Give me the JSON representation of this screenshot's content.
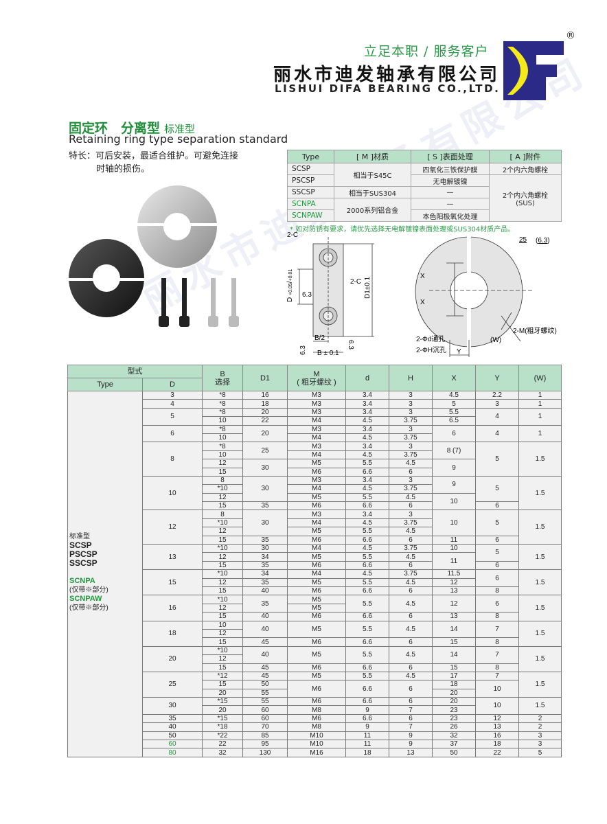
{
  "header": {
    "slogan": "立足本职 / 服务客户",
    "company_cn": "丽水市迪发轴承有限公司",
    "company_en": "LISHUI DIFA BEARING CO.,LTD.",
    "logo_text": "DF",
    "registered": "®",
    "colors": {
      "logo_blue": "#2b2a86",
      "logo_yellow": "#f5ea1c",
      "accent_green": "#2e9a4a",
      "header_green": "#b9e0c8"
    }
  },
  "product": {
    "title": "固定环　分离型",
    "title_sub": "标准型",
    "subtitle": "Retaining ring type separation standard",
    "feature_line1": "特长：可后安装，最适合维护。可避免连接",
    "feature_line2": "时轴的损伤。"
  },
  "material_table": {
    "headers": [
      "Type",
      "[ M ]材质",
      "[ S ]表面处理",
      "[ A ]附件"
    ],
    "rows": [
      [
        "SCSP",
        "相当于S45C",
        "四氧化三铁保护膜",
        "2个内六角螺栓"
      ],
      [
        "PSCSP",
        "",
        "无电解镀镍",
        "2个内六角螺栓"
      ],
      [
        "SSCSP",
        "相当于SUS304",
        "—",
        "(SUS)"
      ],
      [
        "SCNPA",
        "2000系列铝合金",
        "—",
        ""
      ],
      [
        "SCNPAW",
        "",
        "本色阳极氧化处理",
        ""
      ]
    ],
    "note": "* 如对防锈有要求，请优先选择无电解镀镍表面处理或SUS304材质产品。"
  },
  "drawing": {
    "c1": "2-C",
    "c2": "2-C",
    "d_tol": "D",
    "d_tol_up": "+0.05",
    "d_tol_low": "+0.01",
    "d1": "D1±0.1",
    "rough1": "6.3",
    "rough2": "6.3",
    "rough3": "6.3",
    "b_half": "B/2",
    "b": "B ± 0.1",
    "x1": "X",
    "x2": "X",
    "y": "Y",
    "w": "(W)",
    "hole_d": "2-Φd通孔",
    "hole_h": "2-ΦH沉孔",
    "thread": "2-M(粗牙螺纹)",
    "surface": "25",
    "surface_paren": "6.3"
  },
  "main_table": {
    "header_top": "型式",
    "header_type": "Type",
    "header_d": "D",
    "header_b": "B",
    "header_b_sub": "选择",
    "header_d1": "D1",
    "header_m": "M",
    "header_m_sub": "( 粗牙螺纹 )",
    "header_dd": "d",
    "header_h": "H",
    "header_x": "X",
    "header_y": "Y",
    "header_w": "(W)",
    "type_lines": [
      "标准型",
      "SCSP",
      "PSCSP",
      "SSCSP",
      "",
      "SCNPA",
      "(仅带※部分)",
      "SCNPAW",
      "(仅带※部分)"
    ],
    "rows": [
      [
        "3",
        "*8",
        "16",
        "M3",
        "3.4",
        "3",
        "4.5",
        "2.2",
        "1"
      ],
      [
        "4",
        "*8",
        "18",
        "M3",
        "3.4",
        "3",
        "5",
        "3",
        "1"
      ],
      [
        {
          "v": "5",
          "rs": 2
        },
        "*8",
        "20",
        "M3",
        "3.4",
        "3",
        "5.5",
        {
          "v": "4",
          "rs": 2
        },
        {
          "v": "1",
          "rs": 2
        }
      ],
      [
        "10",
        "22",
        "M4",
        "4.5",
        "3.75",
        "6.5"
      ],
      [
        {
          "v": "6",
          "rs": 2
        },
        "*8",
        {
          "v": "20",
          "rs": 2
        },
        "M3",
        "3.4",
        "3",
        {
          "v": "6",
          "rs": 2
        },
        {
          "v": "4",
          "rs": 2
        },
        {
          "v": "1",
          "rs": 2
        }
      ],
      [
        "10",
        "M4",
        "4.5",
        "3.75"
      ],
      [
        {
          "v": "8",
          "rs": 4
        },
        "*8",
        {
          "v": "25",
          "rs": 2
        },
        "M3",
        "3.4",
        "3",
        {
          "v": "8 (7)",
          "rs": 2
        },
        {
          "v": "5",
          "rs": 4
        },
        {
          "v": "1.5",
          "rs": 4
        }
      ],
      [
        "10",
        "M4",
        "4.5",
        "3.75"
      ],
      [
        "12",
        {
          "v": "30",
          "rs": 2
        },
        "M5",
        "5.5",
        "4.5",
        {
          "v": "9",
          "rs": 2
        }
      ],
      [
        "15",
        "M6",
        "6.6",
        "6"
      ],
      [
        {
          "v": "10",
          "rs": 4
        },
        "8",
        {
          "v": "30",
          "rs": 3
        },
        "M3",
        "3.4",
        "3",
        {
          "v": "9",
          "rs": 2
        },
        {
          "v": "5",
          "rs": 3
        },
        {
          "v": "1.5",
          "rs": 4
        }
      ],
      [
        "*10",
        "M4",
        "4.5",
        "3.75"
      ],
      [
        "12",
        "M5",
        "5.5",
        "4.5",
        {
          "v": "10",
          "rs": 2
        }
      ],
      [
        "15",
        "35",
        "M6",
        "6.6",
        "6",
        "6"
      ],
      [
        {
          "v": "12",
          "rs": 4
        },
        "8",
        {
          "v": "30",
          "rs": 3
        },
        "M3",
        "3.4",
        "3",
        {
          "v": "10",
          "rs": 3
        },
        {
          "v": "5",
          "rs": 3
        },
        {
          "v": "1.5",
          "rs": 4
        }
      ],
      [
        "*10",
        "M4",
        "4.5",
        "3.75"
      ],
      [
        "12",
        "M5",
        "5.5",
        "4.5"
      ],
      [
        "15",
        "35",
        "M6",
        "6.6",
        "6",
        "11",
        "6"
      ],
      [
        {
          "v": "13",
          "rs": 3
        },
        "*10",
        "30",
        "M4",
        "4.5",
        "3.75",
        "10",
        {
          "v": "5",
          "rs": 2
        },
        {
          "v": "1.5",
          "rs": 3
        }
      ],
      [
        "12",
        "34",
        "M5",
        "5.5",
        "4.5",
        {
          "v": "11",
          "rs": 2
        }
      ],
      [
        "15",
        "35",
        "M6",
        "6.6",
        "6",
        "6"
      ],
      [
        {
          "v": "15",
          "rs": 3
        },
        "*10",
        "34",
        "M4",
        "4.5",
        "3.75",
        "11.5",
        {
          "v": "6",
          "rs": 2
        },
        {
          "v": "1.5",
          "rs": 3
        }
      ],
      [
        "12",
        "35",
        "M5",
        "5.5",
        "4.5",
        "12"
      ],
      [
        "15",
        "40",
        "M6",
        "6.6",
        "6",
        "13",
        "8"
      ],
      [
        {
          "v": "16",
          "rs": 3
        },
        "*10",
        {
          "v": "35",
          "rs": 2
        },
        "M5",
        {
          "v": "5.5",
          "rs": 2
        },
        {
          "v": "4.5",
          "rs": 2
        },
        {
          "v": "12",
          "rs": 2
        },
        {
          "v": "6",
          "rs": 2
        },
        {
          "v": "1.5",
          "rs": 3
        }
      ],
      [
        "12",
        "M5"
      ],
      [
        "15",
        "40",
        "M6",
        "6.6",
        "6",
        "13",
        "8"
      ],
      [
        {
          "v": "18",
          "rs": 3
        },
        "10",
        {
          "v": "40",
          "rs": 2
        },
        {
          "v": "M5",
          "rs": 2
        },
        {
          "v": "5.5",
          "rs": 2
        },
        {
          "v": "4.5",
          "rs": 2
        },
        {
          "v": "14",
          "rs": 2
        },
        {
          "v": "7",
          "rs": 2
        },
        {
          "v": "1.5",
          "rs": 3
        }
      ],
      [
        "12"
      ],
      [
        "15",
        "45",
        "M6",
        "6.6",
        "6",
        "15",
        "8"
      ],
      [
        {
          "v": "20",
          "rs": 3
        },
        "*10",
        {
          "v": "40",
          "rs": 2
        },
        {
          "v": "M5",
          "rs": 2
        },
        {
          "v": "5.5",
          "rs": 2
        },
        {
          "v": "4.5",
          "rs": 2
        },
        {
          "v": "14",
          "rs": 2
        },
        {
          "v": "7",
          "rs": 2
        },
        {
          "v": "1.5",
          "rs": 3
        }
      ],
      [
        "12"
      ],
      [
        "15",
        "45",
        "M6",
        "6.6",
        "6",
        "15",
        "8"
      ],
      [
        {
          "v": "25",
          "rs": 3
        },
        "*12",
        "45",
        "M5",
        "5.5",
        "4.5",
        "17",
        "7",
        {
          "v": "1.5",
          "rs": 3
        }
      ],
      [
        "15",
        "50",
        {
          "v": "M6",
          "rs": 2
        },
        {
          "v": "6.6",
          "rs": 2
        },
        {
          "v": "6",
          "rs": 2
        },
        "18",
        {
          "v": "10",
          "rs": 2
        }
      ],
      [
        "20",
        "55",
        "20"
      ],
      [
        {
          "v": "30",
          "rs": 2
        },
        "*15",
        "55",
        "M6",
        "6.6",
        "6",
        "20",
        {
          "v": "10",
          "rs": 2
        },
        {
          "v": "1.5",
          "rs": 2
        }
      ],
      [
        "20",
        "60",
        "M8",
        "9",
        "7",
        "23"
      ],
      [
        "35",
        "*15",
        "60",
        "M6",
        "6.6",
        "6",
        "23",
        "12",
        "2"
      ],
      [
        "40",
        "*18",
        "70",
        "M8",
        "9",
        "7",
        "26",
        "13",
        "2"
      ],
      [
        "50",
        "*22",
        "85",
        "M10",
        "11",
        "9",
        "32",
        "16",
        "3"
      ],
      [
        {
          "v": "60",
          "green": true
        },
        "22",
        "95",
        "M10",
        "11",
        "9",
        "37",
        "18",
        "3"
      ],
      [
        {
          "v": "80",
          "green": true
        },
        "32",
        "130",
        "M16",
        "18",
        "13",
        "50",
        "22",
        "5"
      ]
    ]
  },
  "watermark": "丽水市迪发轴承有限公司"
}
